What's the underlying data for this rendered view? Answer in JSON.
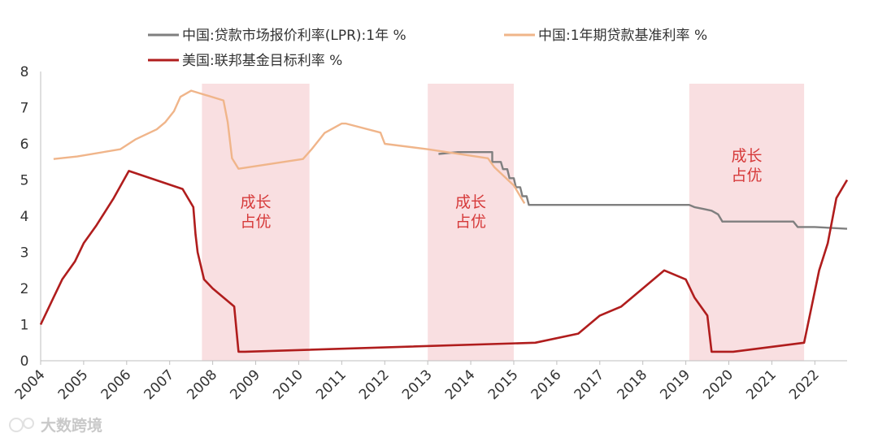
{
  "watermark": {
    "text": "大数跨境"
  },
  "chart_data": {
    "type": "line",
    "title": "",
    "xlabel": "",
    "ylabel": "",
    "xlim": [
      2004,
      2022.75
    ],
    "ylim": [
      0,
      8
    ],
    "yticks": [
      0,
      1,
      2,
      3,
      4,
      5,
      6,
      7,
      8
    ],
    "xticks": [
      2004,
      2005,
      2006,
      2007,
      2008,
      2009,
      2010,
      2011,
      2012,
      2013,
      2014,
      2015,
      2016,
      2017,
      2018,
      2019,
      2020,
      2021,
      2022
    ],
    "grid": false,
    "legend_position": "top",
    "colors": {
      "lpr": "#7f7f7f",
      "benchmark": "#f0b58a",
      "fed": "#b01d1d",
      "shade": "#f9dfe1",
      "shade_text": "#d63a3a"
    },
    "shaded_regions": [
      {
        "x0": 2007.75,
        "x1": 2010.25,
        "label_lines": [
          "成长",
          "占优"
        ]
      },
      {
        "x0": 2013.0,
        "x1": 2015.0,
        "label_lines": [
          "成长",
          "占优"
        ]
      },
      {
        "x0": 2019.08,
        "x1": 2021.75,
        "label_lines": [
          "成长",
          "占优"
        ]
      }
    ],
    "series": [
      {
        "key": "lpr",
        "name": "中国:贷款市场报价利率(LPR):1年 %",
        "x": [
          2013.25,
          2013.7,
          2014.5,
          2014.5,
          2014.7,
          2014.75,
          2014.85,
          2014.9,
          2015.0,
          2015.05,
          2015.15,
          2015.2,
          2015.3,
          2015.35,
          2015.5,
          2019.08,
          2019.2,
          2019.4,
          2019.6,
          2019.75,
          2019.85,
          2021.5,
          2021.6,
          2022.0,
          2022.75
        ],
        "values": [
          5.72,
          5.77,
          5.77,
          5.5,
          5.5,
          5.3,
          5.3,
          5.05,
          5.05,
          4.8,
          4.8,
          4.55,
          4.55,
          4.31,
          4.31,
          4.31,
          4.25,
          4.2,
          4.15,
          4.05,
          3.85,
          3.85,
          3.7,
          3.7,
          3.65
        ]
      },
      {
        "key": "benchmark",
        "name": "中国:1年期贷款基准利率 %",
        "x": [
          2004.3,
          2004.85,
          2005.85,
          2006.2,
          2006.7,
          2006.9,
          2007.1,
          2007.25,
          2007.5,
          2008.25,
          2008.35,
          2008.45,
          2008.6,
          2010.1,
          2010.3,
          2010.6,
          2011.0,
          2011.1,
          2011.9,
          2012.0,
          2013.0,
          2014.4,
          2014.55,
          2015.0,
          2015.25
        ],
        "values": [
          5.58,
          5.65,
          5.85,
          6.12,
          6.4,
          6.6,
          6.9,
          7.3,
          7.47,
          7.2,
          6.6,
          5.6,
          5.31,
          5.58,
          5.85,
          6.3,
          6.56,
          6.56,
          6.31,
          6.0,
          5.85,
          5.6,
          5.35,
          4.85,
          4.35
        ]
      },
      {
        "key": "fed",
        "name": "美国:联邦基金目标利率 %",
        "x": [
          2004.0,
          2004.3,
          2004.5,
          2004.8,
          2005.0,
          2005.3,
          2005.7,
          2006.05,
          2007.3,
          2007.55,
          2007.6,
          2007.65,
          2007.8,
          2008.0,
          2008.5,
          2008.6,
          2008.75,
          2015.5,
          2016.5,
          2017.0,
          2017.5,
          2018.0,
          2018.5,
          2019.0,
          2019.2,
          2019.5,
          2019.6,
          2019.7,
          2020.1,
          2021.75,
          2022.1,
          2022.3,
          2022.5,
          2022.75
        ],
        "values": [
          1.0,
          1.75,
          2.25,
          2.75,
          3.25,
          3.75,
          4.5,
          5.25,
          4.75,
          4.25,
          3.5,
          3.0,
          2.25,
          2.0,
          1.5,
          0.25,
          0.25,
          0.5,
          0.75,
          1.25,
          1.5,
          2.0,
          2.5,
          2.25,
          1.75,
          1.25,
          0.25,
          0.25,
          0.25,
          0.5,
          2.5,
          3.25,
          4.5,
          5.0
        ]
      }
    ]
  }
}
